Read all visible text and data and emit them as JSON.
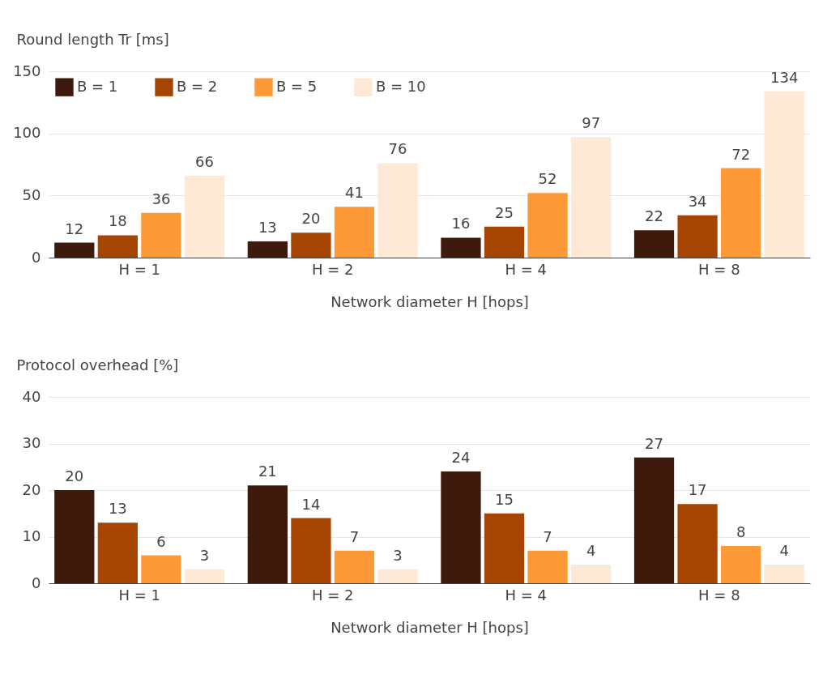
{
  "chart_data": [
    {
      "type": "bar",
      "ylabel": "Round length Tr [ms]",
      "xlabel": "Network diameter H [hops]",
      "categories": [
        "H = 1",
        "H = 2",
        "H = 4",
        "H = 8"
      ],
      "ylim": [
        0,
        150
      ],
      "yticks": [
        0,
        50,
        100,
        150
      ],
      "grid": "y",
      "legend": "top left",
      "data_labels": true,
      "series": [
        {
          "name": "B = 1",
          "color": "#3d1a0b",
          "values": [
            12,
            13,
            16,
            22
          ]
        },
        {
          "name": "B = 2",
          "color": "#a64402",
          "values": [
            18,
            20,
            25,
            34
          ]
        },
        {
          "name": "B = 5",
          "color": "#fd9a37",
          "values": [
            36,
            41,
            52,
            72
          ]
        },
        {
          "name": "B = 10",
          "color": "#fde9d6",
          "values": [
            66,
            76,
            97,
            134
          ]
        }
      ]
    },
    {
      "type": "bar",
      "ylabel": "Protocol overhead [%]",
      "xlabel": "Network diameter H [hops]",
      "categories": [
        "H = 1",
        "H = 2",
        "H = 4",
        "H = 8"
      ],
      "ylim": [
        0,
        40
      ],
      "yticks": [
        0,
        10,
        20,
        30,
        40
      ],
      "grid": "y",
      "legend": "top left",
      "data_labels": true,
      "series": [
        {
          "name": "B = 1",
          "color": "#3d1a0b",
          "values": [
            20,
            21,
            24,
            27
          ]
        },
        {
          "name": "B = 2",
          "color": "#a64402",
          "values": [
            13,
            14,
            15,
            17
          ]
        },
        {
          "name": "B = 5",
          "color": "#fd9a37",
          "values": [
            6,
            7,
            7,
            8
          ]
        },
        {
          "name": "B = 10",
          "color": "#fde9d6",
          "values": [
            3,
            3,
            4,
            4
          ]
        }
      ]
    }
  ]
}
